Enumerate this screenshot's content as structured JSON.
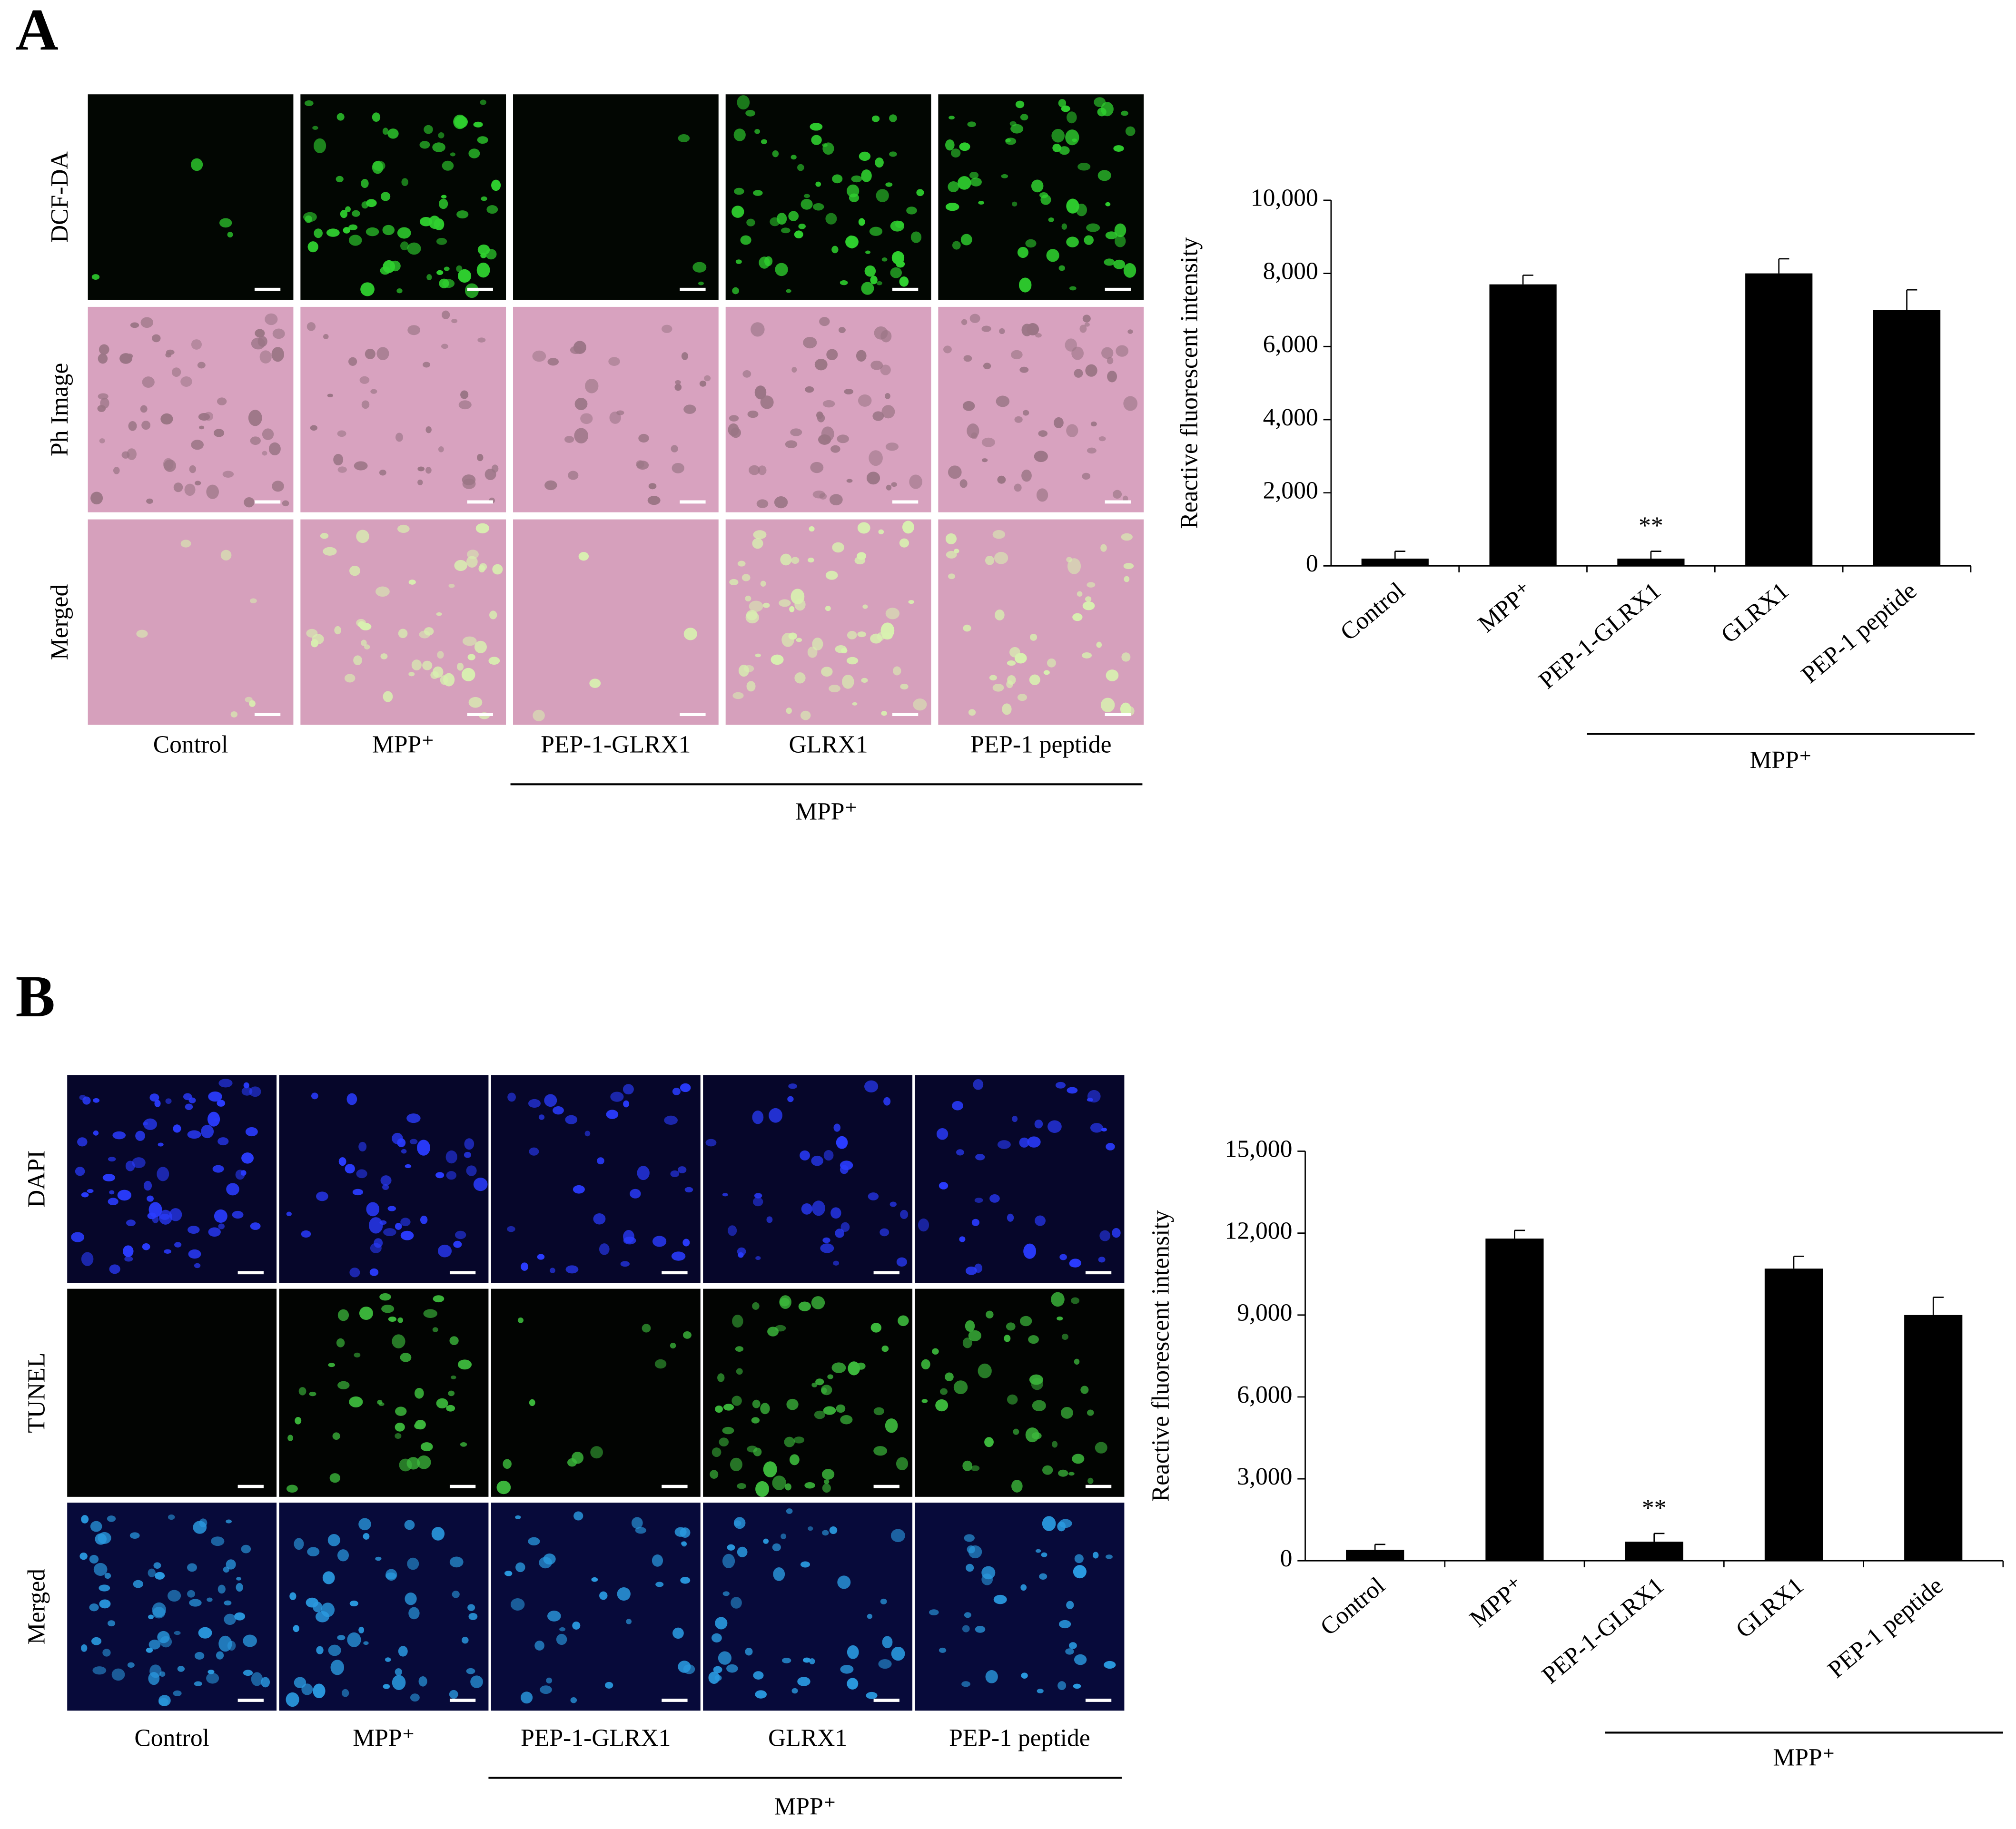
{
  "panels": [
    {
      "label": "A",
      "image_rows": [
        "DCF-DA",
        "Ph Image",
        "Merged"
      ],
      "image_columns": [
        "Control",
        "MPP⁺",
        "PEP-1-GLRX1",
        "GLRX1",
        "PEP-1 peptide"
      ],
      "group_label": "MPP⁺"
    },
    {
      "label": "B",
      "image_rows": [
        "DAPI",
        "TUNEL",
        "Merged"
      ],
      "image_columns": [
        "Control",
        "MPP⁺",
        "PEP-1-GLRX1",
        "GLRX1",
        "PEP-1 peptide"
      ],
      "group_label": "MPP⁺"
    }
  ],
  "chart_data": [
    {
      "type": "bar",
      "ylabel": "Reactive fluorescent intensity",
      "categories": [
        "Control",
        "MPP⁺",
        "PEP-1-GLRX1",
        "GLRX1",
        "PEP-1 peptide"
      ],
      "values": [
        200,
        7700,
        200,
        8000,
        7000
      ],
      "errors": [
        200,
        250,
        200,
        400,
        550
      ],
      "color": "#000000",
      "ylim": [
        0,
        10000
      ],
      "yticks": [
        0,
        {
          "value": 2000,
          "label": "2,000"
        },
        {
          "value": 4000,
          "label": "4,000"
        },
        {
          "value": 6000,
          "label": "6,000"
        },
        {
          "value": 8000,
          "label": "8,000"
        },
        {
          "value": 10000,
          "label": "10,000"
        }
      ],
      "annotations": [
        {
          "text": "**",
          "category": "PEP-1-GLRX1"
        }
      ],
      "group_label": "MPP⁺"
    },
    {
      "type": "bar",
      "ylabel": "Reactive fluorescent intensity",
      "categories": [
        "Control",
        "MPP⁺",
        "PEP-1-GLRX1",
        "GLRX1",
        "PEP-1 peptide"
      ],
      "values": [
        400,
        11800,
        700,
        10700,
        9000
      ],
      "errors": [
        200,
        300,
        300,
        450,
        650
      ],
      "color": "#000000",
      "ylim": [
        0,
        15000
      ],
      "yticks": [
        0,
        {
          "value": 3000,
          "label": "3,000"
        },
        {
          "value": 6000,
          "label": "6,000"
        },
        {
          "value": 9000,
          "label": "9,000"
        },
        {
          "value": 12000,
          "label": "12,000"
        },
        {
          "value": 15000,
          "label": "15,000"
        }
      ],
      "annotations": [
        {
          "text": "**",
          "category": "PEP-1-GLRX1"
        }
      ],
      "group_label": "MPP⁺"
    }
  ]
}
